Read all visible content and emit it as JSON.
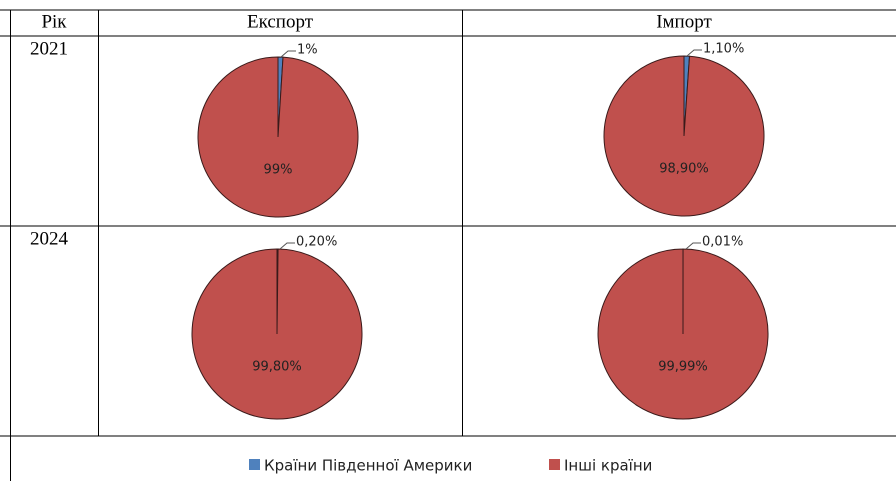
{
  "table": {
    "headers": [
      "Рік",
      "Експорт",
      "Імпорт"
    ],
    "years": [
      "2021",
      "2024"
    ]
  },
  "chart_data": [
    {
      "type": "pie",
      "categories": [
        "Країни Південної Америки",
        "Інші країни"
      ],
      "colors": [
        "#4f81bd",
        "#c0504d"
      ],
      "values": [
        1,
        99
      ],
      "value_labels": [
        "1%",
        "99%"
      ]
    },
    {
      "type": "pie",
      "categories": [
        "Країни Південної Америки",
        "Інші країни"
      ],
      "colors": [
        "#4f81bd",
        "#c0504d"
      ],
      "values": [
        1.1,
        98.9
      ],
      "value_labels": [
        "1,10%",
        "98,90%"
      ]
    },
    {
      "type": "pie",
      "categories": [
        "Країни Південної Америки",
        "Інші країни"
      ],
      "colors": [
        "#4f81bd",
        "#c0504d"
      ],
      "values": [
        0.2,
        99.8
      ],
      "value_labels": [
        "0,20%",
        "99,80%"
      ]
    },
    {
      "type": "pie",
      "categories": [
        "Країни Південної Америки",
        "Інші країни"
      ],
      "colors": [
        "#4f81bd",
        "#c0504d"
      ],
      "values": [
        0.01,
        99.99
      ],
      "value_labels": [
        "0,01%",
        "99,99%"
      ]
    }
  ]
}
